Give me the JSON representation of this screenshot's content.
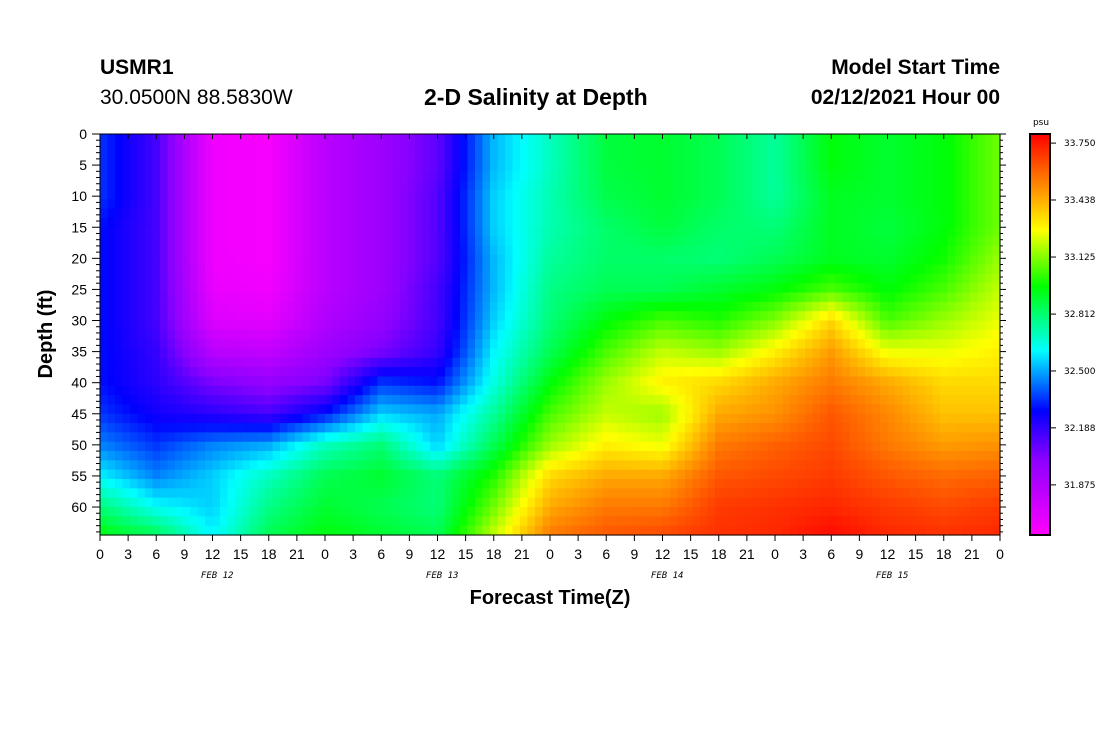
{
  "header": {
    "station": "USMR1",
    "coords": "30.0500N 88.5830W",
    "title": "2-D Salinity at Depth",
    "model_start_label": "Model Start Time",
    "model_start_value": "02/12/2021 Hour 00"
  },
  "chart_data": {
    "type": "heatmap",
    "title": "2-D Salinity at Depth",
    "xlabel": "Forecast Time(Z)",
    "ylabel": "Depth (ft)",
    "x_unit": "hours since 02/12/2021 00Z",
    "xlim": [
      0,
      96
    ],
    "ylim": [
      0,
      64.5
    ],
    "x_tick_labels": [
      "0",
      "3",
      "6",
      "9",
      "12",
      "15",
      "18",
      "21",
      "0",
      "3",
      "6",
      "9",
      "12",
      "15",
      "18",
      "21",
      "0",
      "3",
      "6",
      "9",
      "12",
      "15",
      "18",
      "21",
      "0",
      "3",
      "6",
      "9",
      "12",
      "15",
      "18",
      "21",
      "0"
    ],
    "date_labels": [
      "FEB 12",
      "FEB 13",
      "FEB 14",
      "FEB 15"
    ],
    "y_ticks": [
      0,
      5,
      10,
      15,
      20,
      25,
      30,
      35,
      40,
      45,
      50,
      55,
      60
    ],
    "colorbar": {
      "unit": "psu",
      "min": 31.6,
      "max": 33.8,
      "tick_values": [
        33.75,
        33.438,
        33.125,
        32.812,
        32.5,
        32.188,
        31.875
      ],
      "tick_labels": [
        "33.750",
        "33.438",
        "33.125",
        "32.812",
        "32.500",
        "32.188",
        "31.875"
      ]
    },
    "depths_ft": [
      0,
      5,
      10,
      15,
      20,
      25,
      30,
      35,
      40,
      45,
      50,
      55,
      60,
      64.5
    ],
    "times_h": [
      0,
      6,
      12,
      18,
      24,
      30,
      36,
      42,
      48,
      54,
      60,
      66,
      72,
      78,
      84,
      90,
      96
    ],
    "salinity_psu": [
      [
        32.35,
        32.15,
        31.65,
        31.63,
        31.85,
        31.95,
        32.1,
        32.52,
        32.7,
        32.88,
        32.9,
        32.85,
        32.75,
        32.95,
        32.9,
        32.95,
        33.1
      ],
      [
        32.35,
        32.15,
        31.65,
        31.63,
        31.85,
        31.95,
        32.1,
        32.52,
        32.7,
        32.88,
        32.9,
        32.85,
        32.75,
        32.95,
        32.9,
        32.95,
        33.1
      ],
      [
        32.35,
        32.15,
        31.65,
        31.63,
        31.85,
        31.95,
        32.12,
        32.55,
        32.72,
        32.86,
        32.9,
        32.85,
        32.75,
        32.92,
        32.9,
        32.95,
        33.1
      ],
      [
        32.3,
        32.15,
        31.65,
        31.63,
        31.85,
        31.95,
        32.12,
        32.55,
        32.72,
        32.82,
        32.88,
        32.82,
        32.8,
        32.92,
        32.88,
        32.95,
        33.1
      ],
      [
        32.3,
        32.15,
        31.65,
        31.63,
        31.85,
        31.95,
        32.12,
        32.52,
        32.75,
        32.82,
        32.82,
        32.8,
        32.85,
        32.92,
        32.9,
        32.98,
        33.15
      ],
      [
        32.3,
        32.15,
        31.68,
        31.65,
        31.85,
        31.95,
        32.15,
        32.52,
        32.78,
        32.85,
        32.85,
        32.9,
        32.95,
        33.05,
        32.95,
        33.05,
        33.2
      ],
      [
        32.3,
        32.15,
        31.72,
        31.7,
        31.88,
        31.98,
        32.15,
        32.55,
        32.8,
        32.95,
        33.05,
        33.0,
        33.12,
        33.35,
        33.05,
        33.15,
        33.25
      ],
      [
        32.3,
        32.18,
        31.85,
        31.82,
        31.95,
        32.05,
        32.18,
        32.6,
        32.85,
        33.05,
        33.2,
        33.15,
        33.3,
        33.48,
        33.25,
        33.25,
        33.3
      ],
      [
        32.3,
        32.2,
        32.05,
        31.98,
        32.05,
        32.35,
        32.3,
        32.65,
        32.95,
        33.15,
        33.3,
        33.35,
        33.45,
        33.55,
        33.45,
        33.35,
        33.35
      ],
      [
        32.35,
        32.25,
        32.2,
        32.15,
        32.3,
        32.55,
        32.5,
        32.75,
        33.05,
        33.2,
        33.15,
        33.45,
        33.5,
        33.62,
        33.52,
        33.4,
        33.4
      ],
      [
        32.45,
        32.35,
        32.45,
        32.5,
        32.7,
        32.8,
        32.55,
        32.85,
        33.15,
        33.3,
        33.25,
        33.55,
        33.6,
        33.65,
        33.55,
        33.48,
        33.5
      ],
      [
        32.6,
        32.45,
        32.55,
        32.7,
        32.85,
        32.9,
        32.8,
        33.0,
        33.35,
        33.45,
        33.45,
        33.62,
        33.65,
        33.68,
        33.62,
        33.58,
        33.6
      ],
      [
        32.8,
        32.62,
        32.55,
        32.78,
        32.9,
        32.85,
        32.8,
        33.1,
        33.45,
        33.55,
        33.55,
        33.68,
        33.7,
        33.72,
        33.68,
        33.65,
        33.68
      ],
      [
        32.95,
        32.85,
        32.6,
        32.85,
        32.95,
        32.9,
        32.85,
        33.2,
        33.55,
        33.62,
        33.65,
        33.7,
        33.72,
        33.78,
        33.72,
        33.7,
        33.72
      ]
    ]
  }
}
